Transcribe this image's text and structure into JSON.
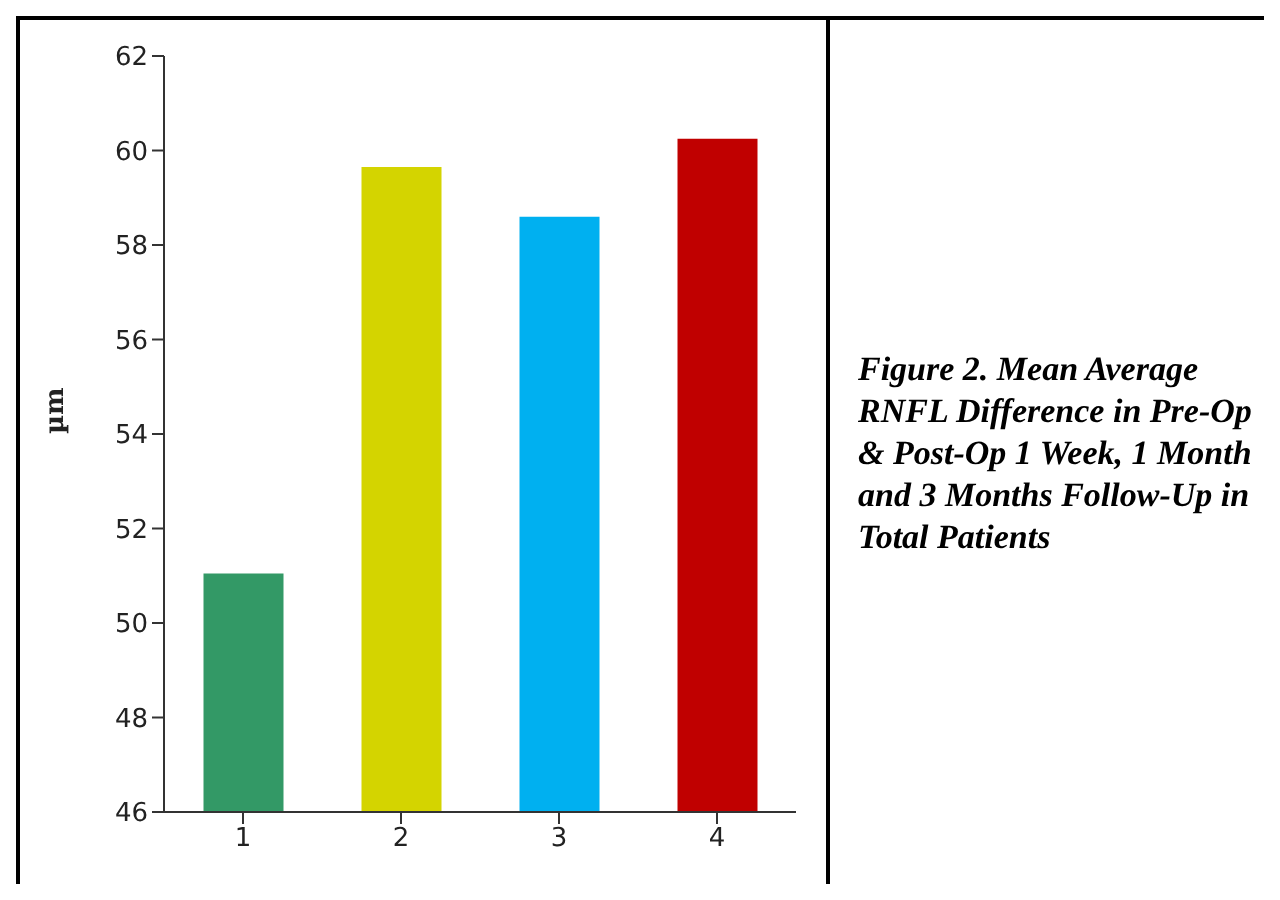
{
  "chart_data": {
    "type": "bar",
    "title": "Figure 2. Mean  Average RNFL Difference in Pre-Op & Post-Op 1 Week, 1 Month and 3 Months Follow-Up in Total Patients",
    "ylabel": "µm",
    "categories": [
      "1",
      "2",
      "3",
      "4"
    ],
    "values": [
      51.05,
      59.65,
      58.6,
      60.25
    ],
    "colors": [
      "#339966",
      "#d4d400",
      "#00b0f0",
      "#c00000"
    ],
    "ylim": [
      46,
      62
    ],
    "yticks": [
      46,
      48,
      50,
      52,
      54,
      56,
      58,
      60,
      62
    ],
    "grid": false,
    "legend": false
  }
}
